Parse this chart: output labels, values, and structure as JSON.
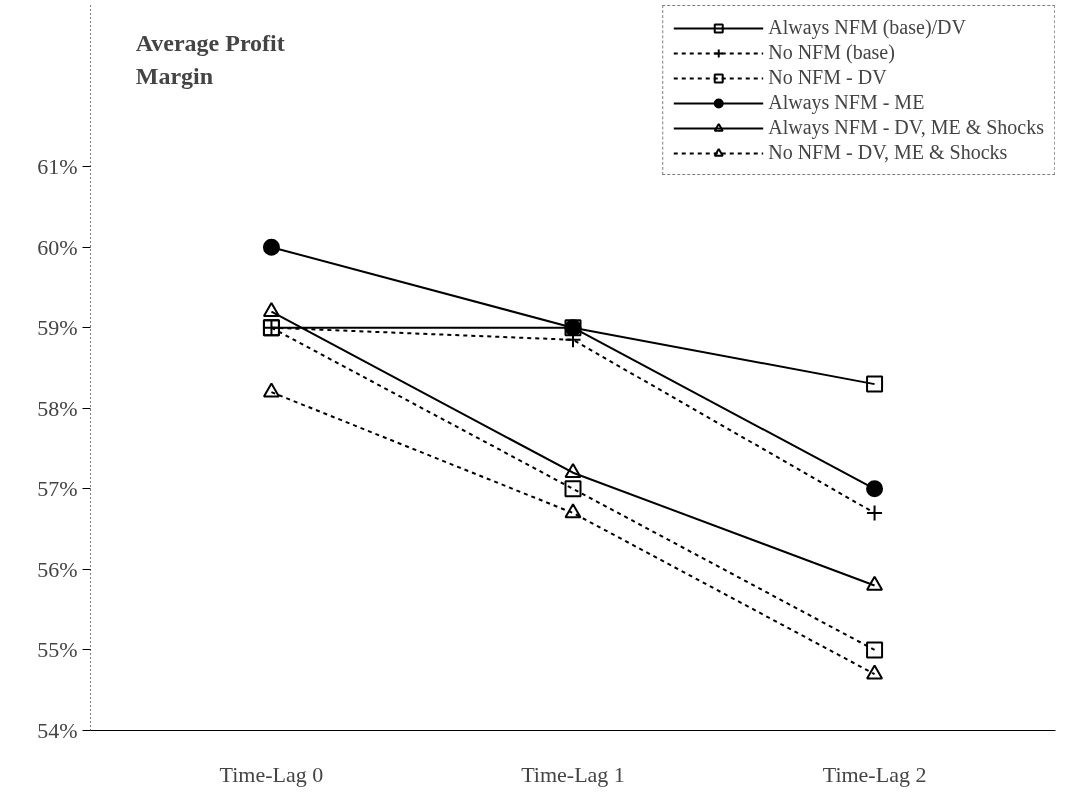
{
  "chart_data": {
    "type": "line",
    "title": "Average Profit\nMargin",
    "categories": [
      "Time-Lag 0",
      "Time-Lag 1",
      "Time-Lag 2"
    ],
    "ylim": [
      54,
      63
    ],
    "yticks": [
      {
        "value": 54,
        "label": "54%"
      },
      {
        "value": 55,
        "label": "55%"
      },
      {
        "value": 56,
        "label": "56%"
      },
      {
        "value": 57,
        "label": "57%"
      },
      {
        "value": 58,
        "label": "58%"
      },
      {
        "value": 59,
        "label": "59%"
      },
      {
        "value": 60,
        "label": "60%"
      },
      {
        "value": 61,
        "label": "61%"
      }
    ],
    "grid": false,
    "legend": "top right",
    "series": [
      {
        "name": "Always NFM (base)/DV",
        "color": "#000000",
        "marker": "square",
        "line_style": "solid",
        "values": [
          59.0,
          59.0,
          58.3
        ]
      },
      {
        "name": "No NFM (base)",
        "color": "#000000",
        "marker": "cross",
        "line_style": "dashed",
        "values": [
          59.0,
          58.85,
          56.7
        ]
      },
      {
        "name": "No NFM - DV",
        "color": "#000000",
        "marker": "square",
        "line_style": "dashed",
        "values": [
          59.0,
          57.0,
          55.0
        ]
      },
      {
        "name": "Always NFM - ME",
        "color": "#000000",
        "marker": "circle",
        "line_style": "solid",
        "values": [
          60.0,
          59.0,
          57.0
        ]
      },
      {
        "name": "Always NFM - DV, ME & Shocks",
        "color": "#000000",
        "marker": "triangle",
        "line_style": "solid",
        "values": [
          59.2,
          57.2,
          55.8
        ]
      },
      {
        "name": "No NFM - DV, ME & Shocks",
        "color": "#000000",
        "marker": "triangle",
        "line_style": "dashed",
        "values": [
          58.2,
          56.7,
          54.7
        ]
      }
    ]
  }
}
